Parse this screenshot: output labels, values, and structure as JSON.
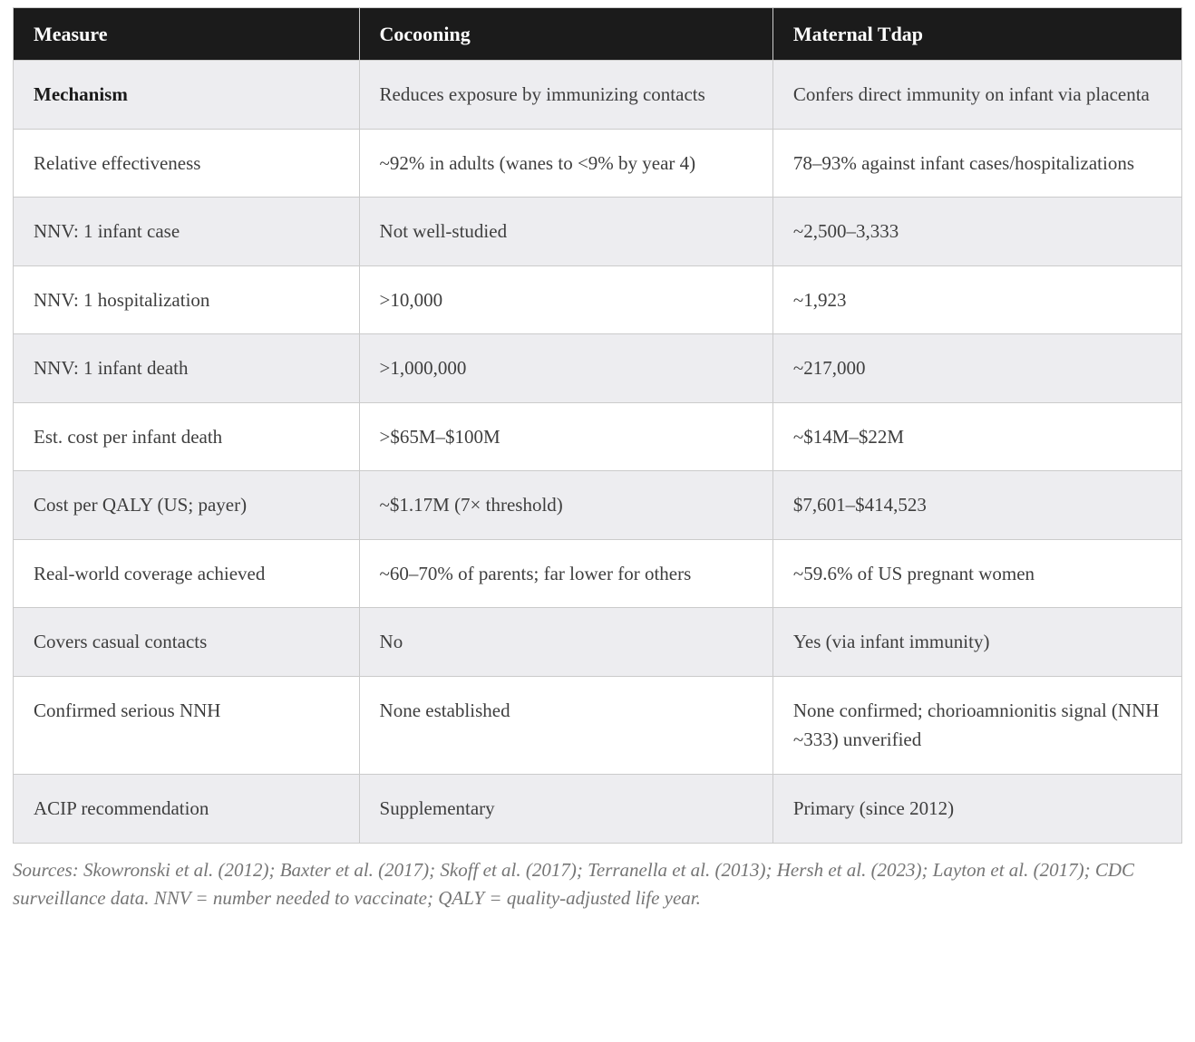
{
  "table": {
    "columns": [
      "Measure",
      "Cocooning",
      "Maternal Tdap"
    ],
    "rows": [
      {
        "measure": "Mechanism",
        "cocooning": "Reduces exposure by immunizing contacts",
        "maternal_tdap": "Confers direct immunity on infant via placenta"
      },
      {
        "measure": "Relative effectiveness",
        "cocooning": "~92% in adults (wanes to <9% by year 4)",
        "maternal_tdap": "78–93% against infant cases/hospitalizations"
      },
      {
        "measure": "NNV: 1 infant case",
        "cocooning": "Not well-studied",
        "maternal_tdap": "~2,500–3,333"
      },
      {
        "measure": "NNV: 1 hospitalization",
        "cocooning": ">10,000",
        "maternal_tdap": "~1,923"
      },
      {
        "measure": "NNV: 1 infant death",
        "cocooning": ">1,000,000",
        "maternal_tdap": "~217,000"
      },
      {
        "measure": "Est. cost per infant death",
        "cocooning": ">$65M–$100M",
        "maternal_tdap": "~$14M–$22M"
      },
      {
        "measure": "Cost per QALY (US; payer)",
        "cocooning": "~$1.17M (7× threshold)",
        "maternal_tdap": "$7,601–$414,523"
      },
      {
        "measure": "Real-world coverage achieved",
        "cocooning": "~60–70% of parents; far lower for others",
        "maternal_tdap": "~59.6% of US pregnant women"
      },
      {
        "measure": "Covers casual contacts",
        "cocooning": "No",
        "maternal_tdap": "Yes (via infant immunity)"
      },
      {
        "measure": "Confirmed serious NNH",
        "cocooning": "None established",
        "maternal_tdap": "None confirmed; chorioamnionitis signal (NNH ~333) unverified"
      },
      {
        "measure": "ACIP recommendation",
        "cocooning": "Supplementary",
        "maternal_tdap": "Primary (since 2012)"
      }
    ]
  },
  "footnote": "Sources: Skowronski et al. (2012); Baxter et al. (2017); Skoff et al. (2017); Terranella et al. (2013); Hersh et al. (2023); Layton et al. (2017); CDC surveillance data. NNV = number needed to vaccinate; QALY = quality-adjusted life year.",
  "colors": {
    "header_bg": "#1b1b1b",
    "header_text": "#ffffff",
    "row_alt_bg": "#ededf0",
    "row_bg": "#ffffff",
    "border": "#cbcbcb",
    "body_text": "#3e3e3e",
    "footnote_text": "#757575"
  }
}
